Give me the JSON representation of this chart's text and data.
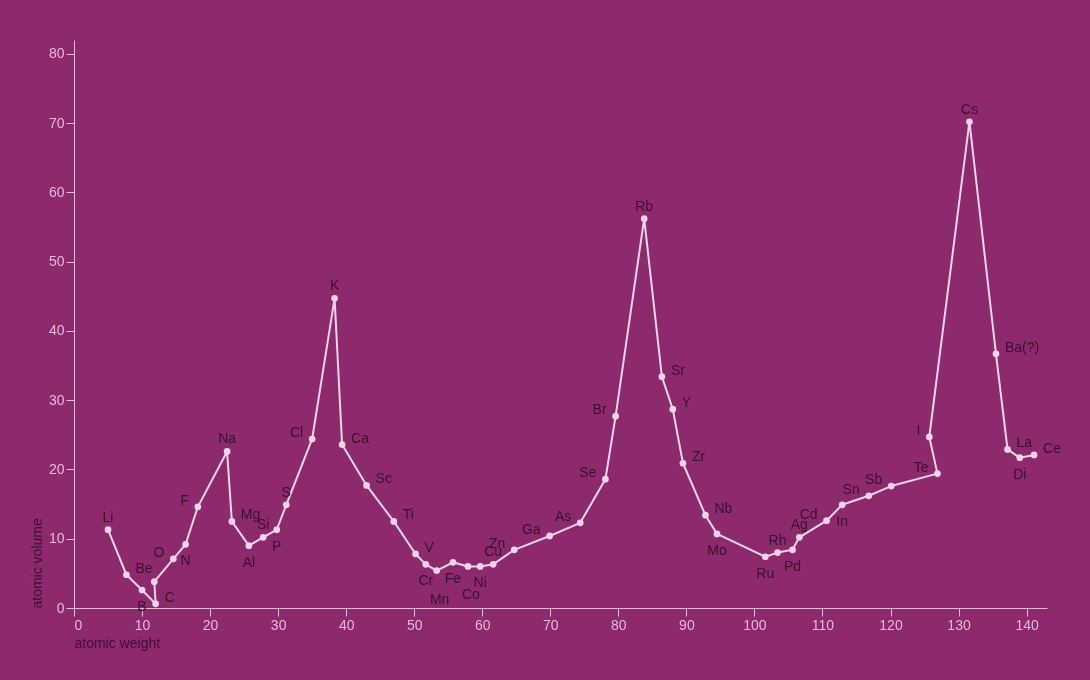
{
  "chart_data": {
    "type": "line",
    "xlabel": "atomic weight",
    "ylabel": "atomic volume",
    "x": [
      5.0,
      7.7,
      10.0,
      12.0,
      11.8,
      14.6,
      16.4,
      18.2,
      22.5,
      23.2,
      25.7,
      27.8,
      29.8,
      31.2,
      35.0,
      38.3,
      39.4,
      43.0,
      47.0,
      50.2,
      51.7,
      53.3,
      55.7,
      57.9,
      59.7,
      61.6,
      64.7,
      69.9,
      74.4,
      78.1,
      79.6,
      83.8,
      86.4,
      88.0,
      89.5,
      92.8,
      94.5,
      101.6,
      103.4,
      105.6,
      106.6,
      110.6,
      112.9,
      116.8,
      120.1,
      126.9,
      125.7,
      131.6,
      135.5,
      137.2,
      139.0,
      141.1
    ],
    "series": [
      {
        "color": "#f6d3e6",
        "values": [
          11.3,
          4.8,
          2.6,
          0.6,
          3.8,
          7.1,
          9.2,
          14.6,
          22.6,
          12.5,
          9.0,
          10.2,
          11.3,
          14.9,
          24.4,
          44.7,
          23.6,
          17.7,
          12.5,
          7.8,
          6.3,
          5.4,
          6.6,
          6.0,
          6.0,
          6.3,
          8.4,
          10.4,
          12.3,
          18.6,
          27.7,
          56.2,
          33.4,
          28.7,
          20.9,
          13.4,
          10.7,
          7.4,
          8.0,
          8.4,
          10.2,
          12.6,
          14.9,
          16.2,
          17.6,
          19.4,
          24.7,
          70.2,
          36.7,
          22.9,
          21.7,
          22.1
        ]
      }
    ],
    "xlim": [
      0,
      143
    ],
    "ylim": [
      0,
      82
    ],
    "xticks": [
      0,
      10,
      20,
      30,
      40,
      50,
      60,
      70,
      80,
      90,
      100,
      110,
      120,
      130,
      140
    ],
    "yticks": [
      0,
      10,
      20,
      30,
      40,
      50,
      60,
      70,
      80
    ],
    "grid": false,
    "marker": "circle",
    "line_style": "solid",
    "annotations": [
      {
        "text": "Li",
        "x": 5.0,
        "y": 11.3
      },
      {
        "text": "Be",
        "x": 7.7,
        "y": 4.8
      },
      {
        "text": "B",
        "x": 10.0,
        "y": 2.6
      },
      {
        "text": "C",
        "x": 12.0,
        "y": 0.6
      },
      {
        "text": "O",
        "x": 14.6,
        "y": 7.1
      },
      {
        "text": "N",
        "x": 16.4,
        "y": 9.2
      },
      {
        "text": "F",
        "x": 18.2,
        "y": 14.6
      },
      {
        "text": "Na",
        "x": 22.5,
        "y": 22.6
      },
      {
        "text": "Mg",
        "x": 23.2,
        "y": 12.5
      },
      {
        "text": "Al",
        "x": 25.7,
        "y": 9.0
      },
      {
        "text": "Si",
        "x": 27.8,
        "y": 10.2
      },
      {
        "text": "P",
        "x": 29.8,
        "y": 11.3
      },
      {
        "text": "S",
        "x": 31.2,
        "y": 14.9
      },
      {
        "text": "Cl",
        "x": 35.0,
        "y": 24.4
      },
      {
        "text": "K",
        "x": 38.3,
        "y": 44.7
      },
      {
        "text": "Ca",
        "x": 39.4,
        "y": 23.6
      },
      {
        "text": "Sc",
        "x": 43.0,
        "y": 17.7
      },
      {
        "text": "Ti",
        "x": 47.0,
        "y": 12.5
      },
      {
        "text": "V",
        "x": 50.2,
        "y": 7.8
      },
      {
        "text": "Cr",
        "x": 51.7,
        "y": 6.3
      },
      {
        "text": "Mn",
        "x": 53.3,
        "y": 5.4
      },
      {
        "text": "Fe",
        "x": 55.7,
        "y": 6.6
      },
      {
        "text": "Co",
        "x": 57.9,
        "y": 6.0
      },
      {
        "text": "Ni",
        "x": 59.7,
        "y": 6.0
      },
      {
        "text": "Cu",
        "x": 61.6,
        "y": 6.3
      },
      {
        "text": "Zn",
        "x": 64.7,
        "y": 8.4
      },
      {
        "text": "Ga",
        "x": 69.9,
        "y": 10.4
      },
      {
        "text": "As",
        "x": 74.4,
        "y": 12.3
      },
      {
        "text": "Se",
        "x": 78.1,
        "y": 18.6
      },
      {
        "text": "Br",
        "x": 79.6,
        "y": 27.7
      },
      {
        "text": "Rb",
        "x": 83.8,
        "y": 56.2
      },
      {
        "text": "Sr",
        "x": 86.4,
        "y": 33.4
      },
      {
        "text": "Y",
        "x": 88.0,
        "y": 28.7
      },
      {
        "text": "Zr",
        "x": 89.5,
        "y": 20.9
      },
      {
        "text": "Nb",
        "x": 92.8,
        "y": 13.4
      },
      {
        "text": "Mo",
        "x": 94.5,
        "y": 10.7
      },
      {
        "text": "Ru",
        "x": 101.6,
        "y": 7.4
      },
      {
        "text": "Rh",
        "x": 103.4,
        "y": 8.0
      },
      {
        "text": "Pd",
        "x": 105.6,
        "y": 8.4
      },
      {
        "text": "Ag",
        "x": 106.6,
        "y": 10.2
      },
      {
        "text": "Cd",
        "x": 110.6,
        "y": 12.6
      },
      {
        "text": "In",
        "x": 112.9,
        "y": 14.9
      },
      {
        "text": "Sn",
        "x": 116.8,
        "y": 16.2
      },
      {
        "text": "Sb",
        "x": 120.1,
        "y": 17.6
      },
      {
        "text": "Te",
        "x": 126.9,
        "y": 19.4
      },
      {
        "text": "I",
        "x": 125.7,
        "y": 24.7
      },
      {
        "text": "Cs",
        "x": 131.6,
        "y": 70.2
      },
      {
        "text": "Ba(?)",
        "x": 135.5,
        "y": 36.7
      },
      {
        "text": "La",
        "x": 137.2,
        "y": 22.9
      },
      {
        "text": "Di",
        "x": 139.0,
        "y": 21.7
      },
      {
        "text": "Ce",
        "x": 141.1,
        "y": 22.1
      }
    ]
  }
}
